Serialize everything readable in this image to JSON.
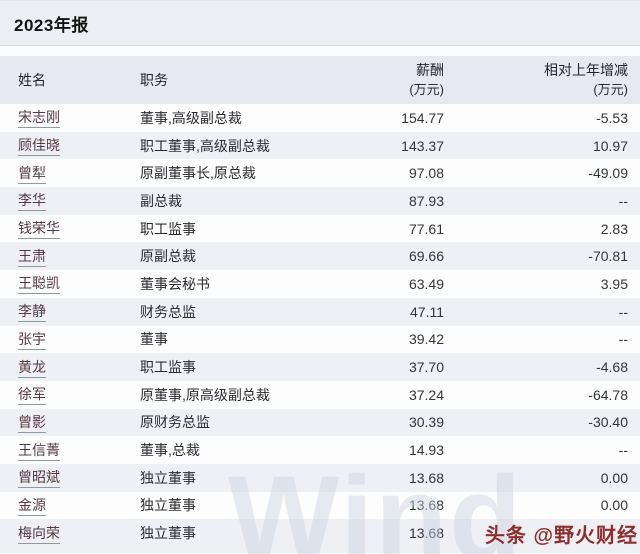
{
  "title": "2023年报",
  "table": {
    "columns": [
      {
        "label": "姓名",
        "sub": ""
      },
      {
        "label": "职务",
        "sub": ""
      },
      {
        "label": "薪酬",
        "sub": "(万元)"
      },
      {
        "label": "相对上年增减",
        "sub": "(万元)"
      }
    ],
    "rows": [
      {
        "name": "宋志刚",
        "position": "董事,高级副总裁",
        "salary": "154.77",
        "change": "-5.53"
      },
      {
        "name": "顾佳晓",
        "position": "职工董事,高级副总裁",
        "salary": "143.37",
        "change": "10.97"
      },
      {
        "name": "曾犁",
        "position": "原副董事长,原总裁",
        "salary": "97.08",
        "change": "-49.09"
      },
      {
        "name": "李华",
        "position": "副总裁",
        "salary": "87.93",
        "change": "--"
      },
      {
        "name": "钱荣华",
        "position": "职工监事",
        "salary": "77.61",
        "change": "2.83"
      },
      {
        "name": "王肃",
        "position": "原副总裁",
        "salary": "69.66",
        "change": "-70.81"
      },
      {
        "name": "王聪凯",
        "position": "董事会秘书",
        "salary": "63.49",
        "change": "3.95"
      },
      {
        "name": "李静",
        "position": "财务总监",
        "salary": "47.11",
        "change": "--"
      },
      {
        "name": "张宇",
        "position": "董事",
        "salary": "39.42",
        "change": "--"
      },
      {
        "name": "黄龙",
        "position": "职工监事",
        "salary": "37.70",
        "change": "-4.68"
      },
      {
        "name": "徐军",
        "position": "原董事,原高级副总裁",
        "salary": "37.24",
        "change": "-64.78"
      },
      {
        "name": "曾影",
        "position": "原财务总监",
        "salary": "30.39",
        "change": "-30.40"
      },
      {
        "name": "王信菁",
        "position": "董事,总裁",
        "salary": "14.93",
        "change": "--"
      },
      {
        "name": "曾昭斌",
        "position": "独立董事",
        "salary": "13.68",
        "change": "0.00"
      },
      {
        "name": "金源",
        "position": "独立董事",
        "salary": "13.68",
        "change": "0.00"
      },
      {
        "name": "梅向荣",
        "position": "独立董事",
        "salary": "13.68",
        "change": ""
      }
    ]
  },
  "watermarks": {
    "brand": "Wind",
    "channel": "头条 @野火财经"
  },
  "colors": {
    "name_link": "#553a41",
    "stripe_even": "#eef0f5",
    "header_bg": "#e6e9ef",
    "title_bg": "#edeff4",
    "channel_watermark": "#8a2f2f"
  }
}
